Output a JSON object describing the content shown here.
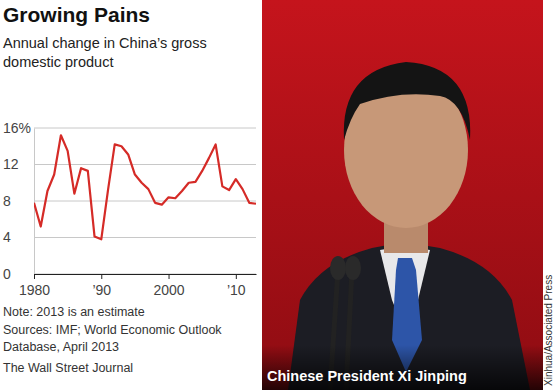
{
  "chart_data": {
    "type": "line",
    "title": "Growing Pains",
    "subtitle": [
      "Annual change in China’s gross",
      "domestic product"
    ],
    "x": [
      1980,
      1981,
      1982,
      1983,
      1984,
      1985,
      1986,
      1987,
      1988,
      1989,
      1990,
      1991,
      1992,
      1993,
      1994,
      1995,
      1996,
      1997,
      1998,
      1999,
      2000,
      2001,
      2002,
      2003,
      2004,
      2005,
      2006,
      2007,
      2008,
      2009,
      2010,
      2011,
      2012,
      2013
    ],
    "values": [
      7.8,
      5.2,
      9.1,
      10.9,
      15.2,
      13.5,
      8.8,
      11.6,
      11.3,
      4.1,
      3.8,
      9.2,
      14.2,
      14.0,
      13.1,
      10.9,
      10.0,
      9.3,
      7.8,
      7.6,
      8.4,
      8.3,
      9.1,
      10.0,
      10.1,
      11.3,
      12.7,
      14.2,
      9.6,
      9.2,
      10.4,
      9.3,
      7.8,
      7.7
    ],
    "color": "#d52b27",
    "xlim": [
      1980,
      2013
    ],
    "xticks": [
      1980,
      {
        "value": 1990,
        "label": "’90"
      },
      2000,
      {
        "value": 2010,
        "label": "’10"
      }
    ],
    "ylim": [
      0,
      16
    ],
    "yticks": [
      0,
      4,
      8,
      12,
      {
        "value": 16,
        "label": "16%"
      }
    ],
    "grid": true,
    "annotations": [
      "Note: 2013 is an estimate",
      "Sources: IMF; World Economic Outlook",
      "Database, April 2013",
      "The Wall Street Journal"
    ]
  },
  "photo": {
    "caption": "Chinese President Xi Jinping",
    "credit": "Xinhua/Associated Press"
  }
}
